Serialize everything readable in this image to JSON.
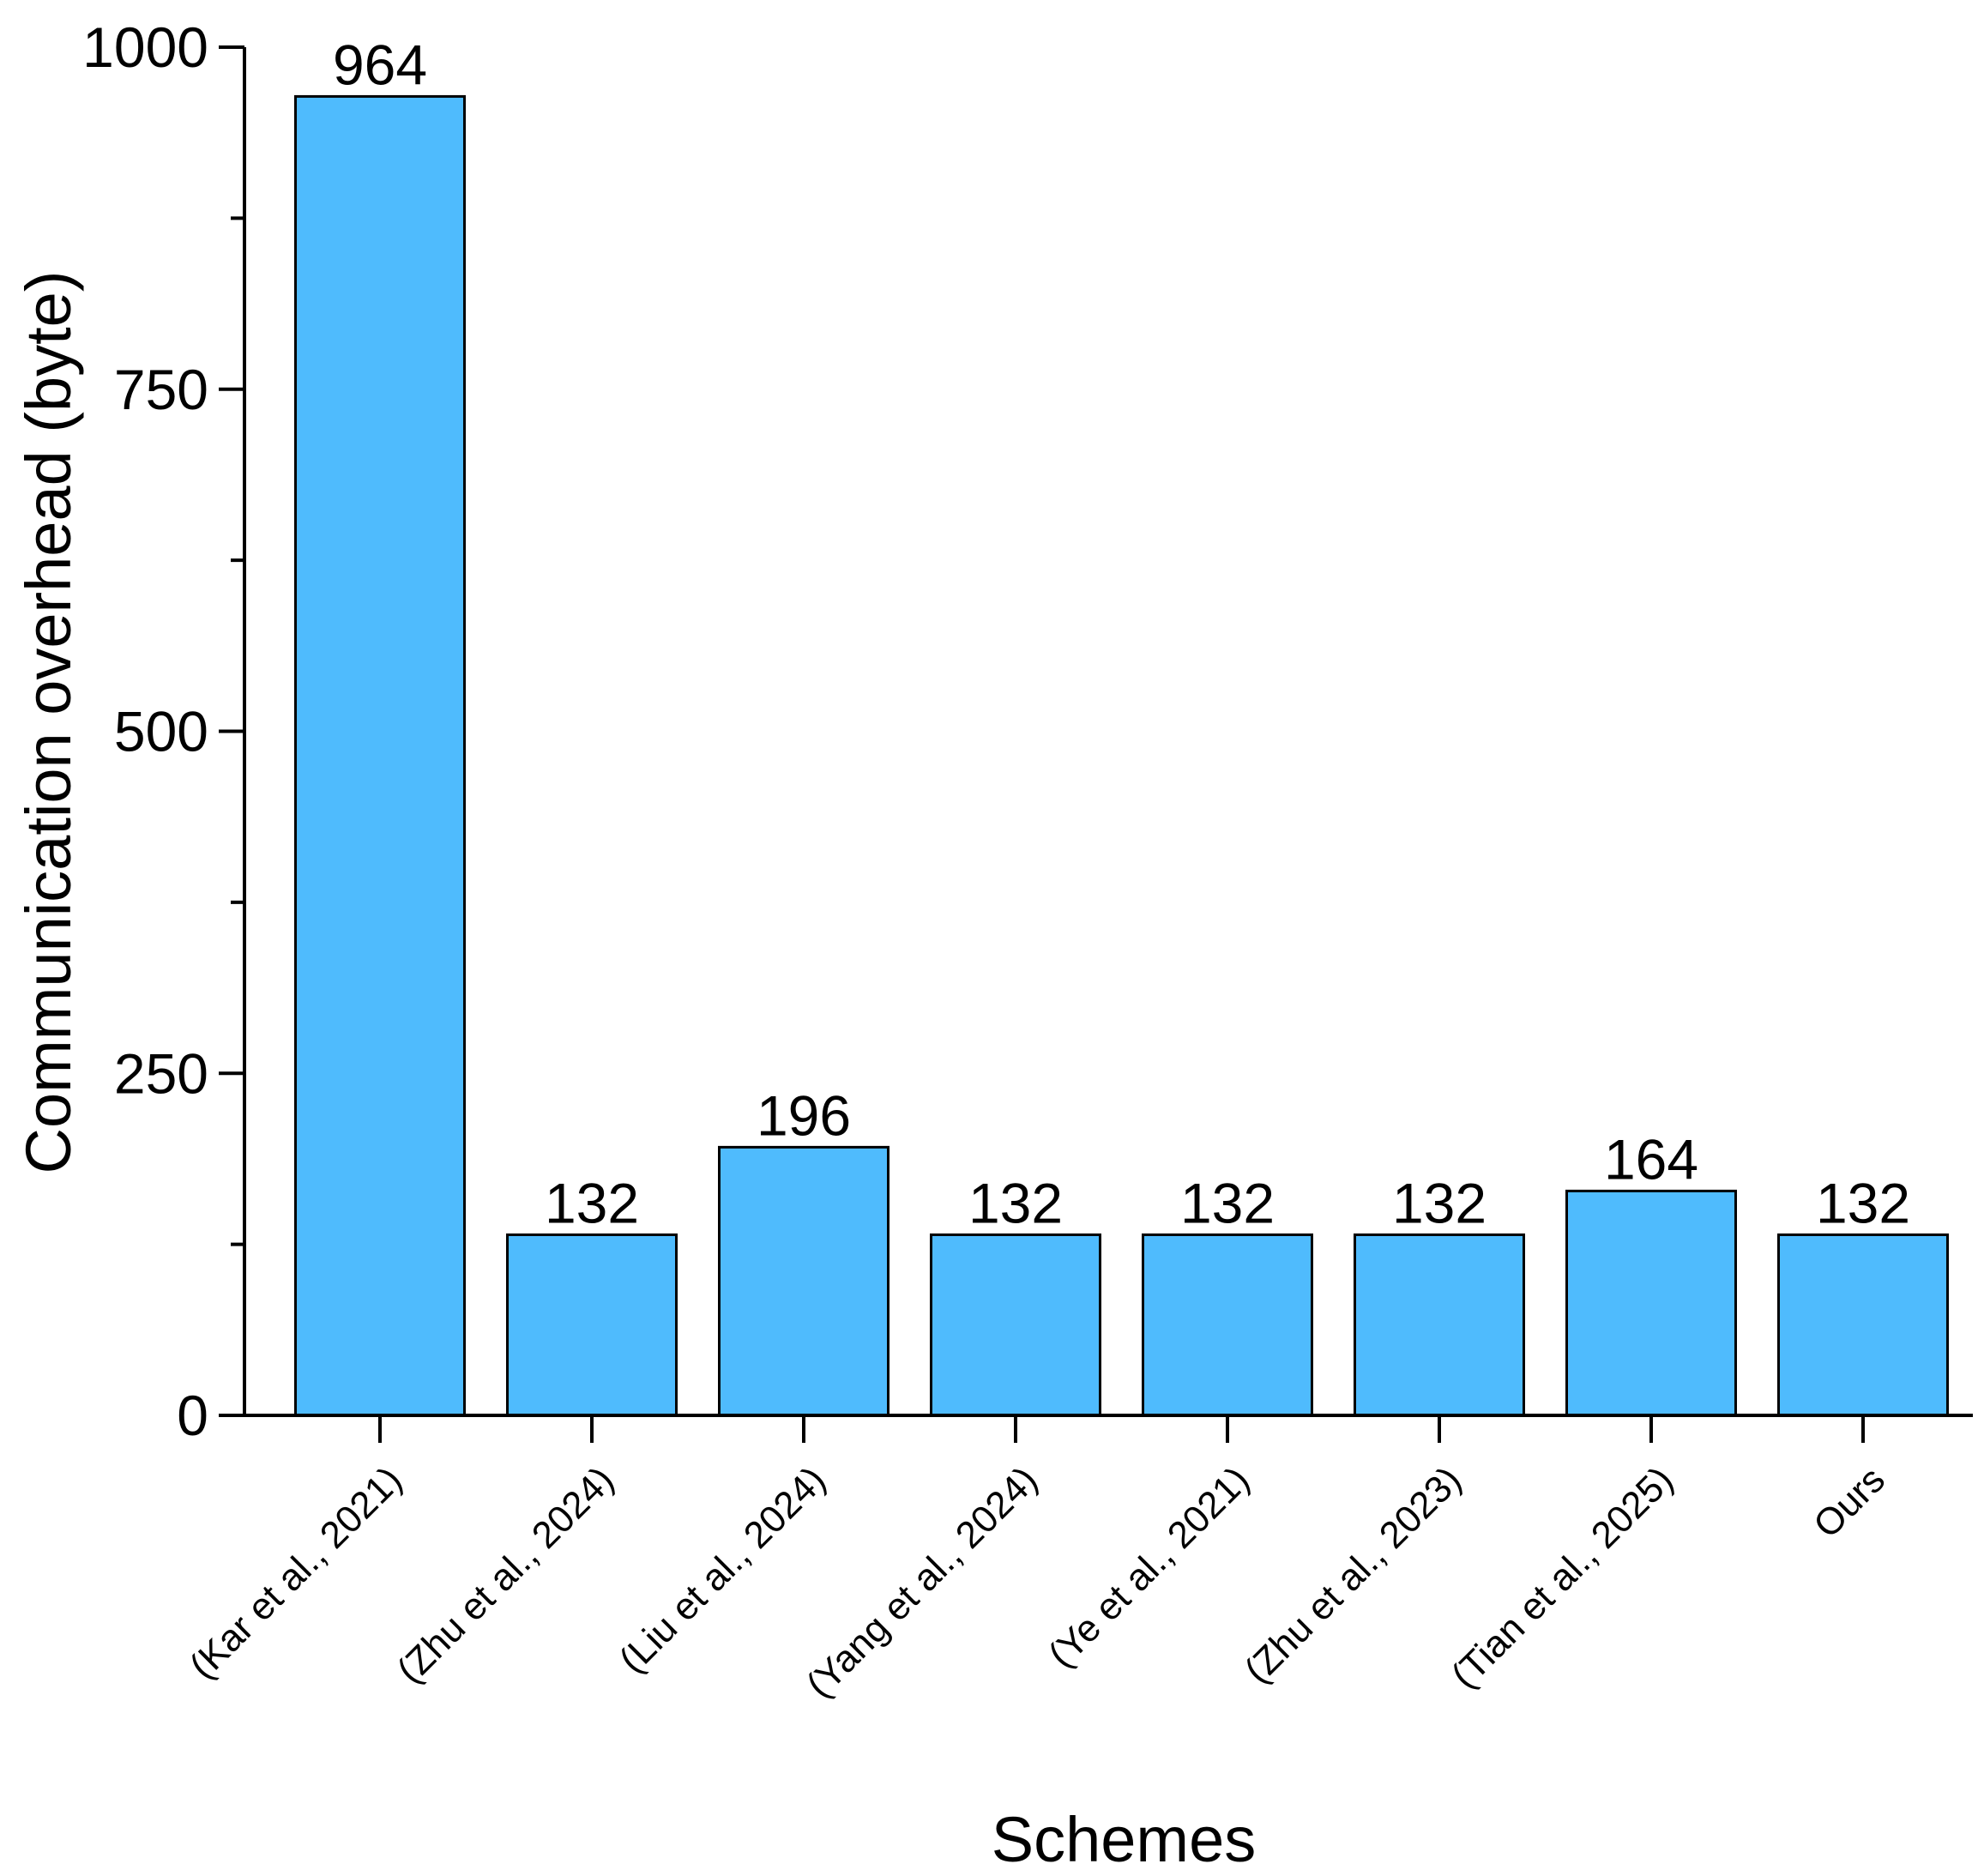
{
  "chart_data": {
    "type": "bar",
    "categories": [
      "(Kar et al., 2021)",
      "(Zhu et al., 2024)",
      "(Liu et al., 2024)",
      "(Yang et al., 2024)",
      "(Ye et al., 2021)",
      "(Zhu et al., 2023)",
      "(Tian et al., 2025)",
      "Ours"
    ],
    "values": [
      964,
      132,
      196,
      132,
      132,
      132,
      164,
      132
    ],
    "data_labels": [
      "964",
      "132",
      "196",
      "132",
      "132",
      "132",
      "164",
      "132"
    ],
    "xlabel": "Schemes",
    "ylabel": "Communication overhead (byte)",
    "ylim": [
      0,
      1000
    ],
    "yticks": [
      0,
      250,
      500,
      750,
      1000
    ],
    "ytick_labels": [
      "0",
      "250",
      "500",
      "750",
      "1000"
    ],
    "y_minor_ticks": [
      125,
      375,
      625,
      875
    ],
    "grid": false,
    "legend": "none",
    "colors": {
      "bar_fill": "#4FBBFD",
      "bar_stroke": "#000000",
      "axis": "#000000"
    }
  }
}
